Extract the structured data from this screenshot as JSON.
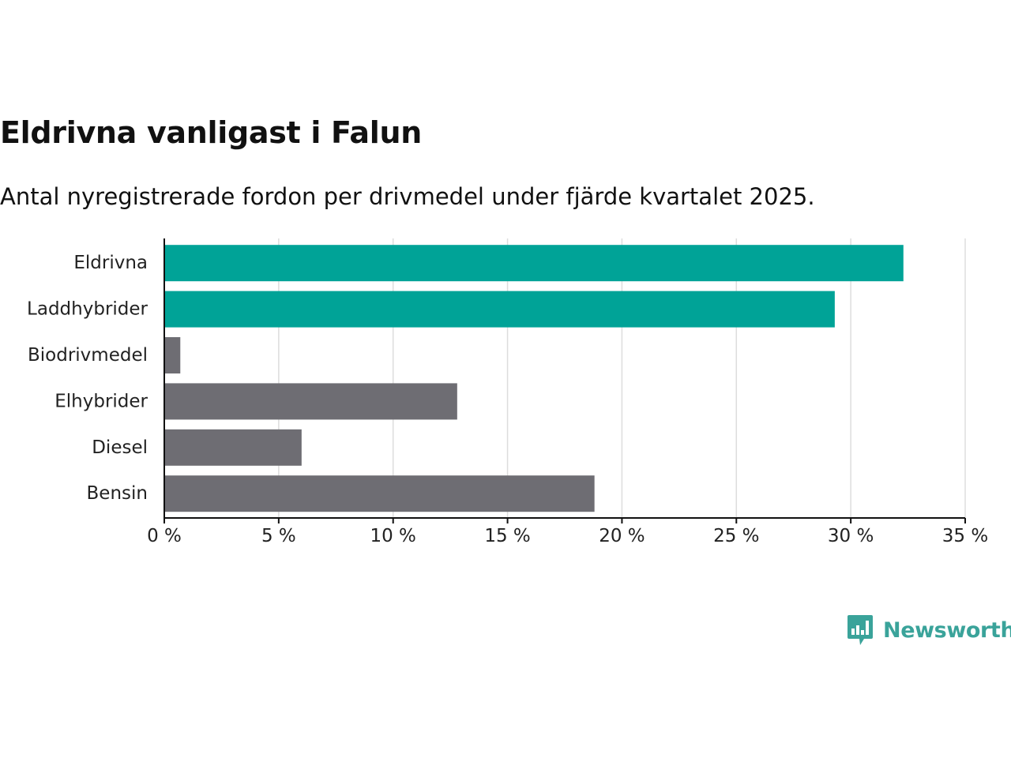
{
  "chart_data": {
    "type": "bar",
    "orientation": "horizontal",
    "title": "Eldrivna vanligast i Falun",
    "subtitle": "Antal nyregistrerade fordon per drivmedel under fjärde kvartalet 2025.",
    "categories": [
      "Eldrivna",
      "Laddhybrider",
      "Biodrivmedel",
      "Elhybrider",
      "Diesel",
      "Bensin"
    ],
    "values": [
      32.3,
      29.3,
      0.7,
      12.8,
      6.0,
      18.8
    ],
    "colors": [
      "#00a397",
      "#00a397",
      "#6e6d73",
      "#6e6d73",
      "#6e6d73",
      "#6e6d73"
    ],
    "xlim": [
      0,
      35
    ],
    "xticks": [
      0,
      5,
      10,
      15,
      20,
      25,
      30,
      35
    ],
    "xtick_labels": [
      "0 %",
      "5 %",
      "10 %",
      "15 %",
      "20 %",
      "25 %",
      "30 %",
      "35 %"
    ],
    "grid": true,
    "xlabel": "",
    "ylabel": ""
  },
  "branding": {
    "name": "Newsworthy",
    "icon": "newsworthy-logo-icon",
    "color": "#3aa39a"
  }
}
